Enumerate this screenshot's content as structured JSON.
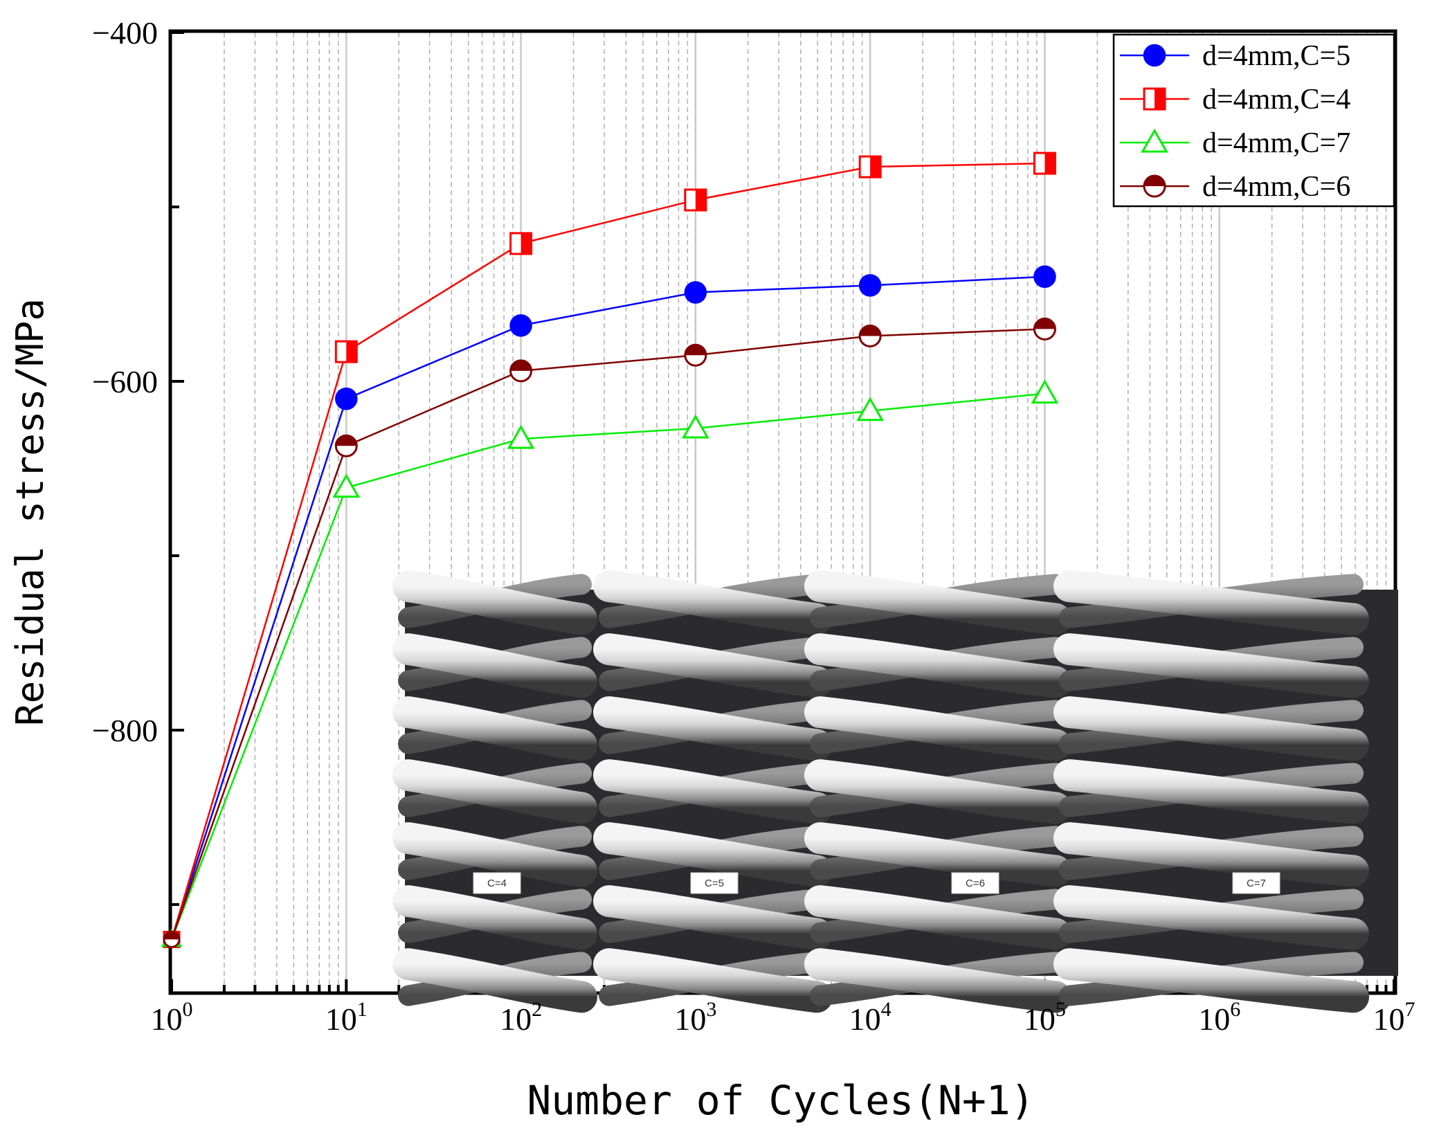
{
  "chart_data": {
    "type": "line",
    "title": "",
    "xlabel": "Number of Cycles(N+1)",
    "ylabel": "Residual stress/MPa",
    "xscale": "log",
    "xlim": [
      1,
      10000000
    ],
    "ylim": [
      -950,
      -400
    ],
    "x_tick_bases": [
      "10",
      "10",
      "10",
      "10",
      "10",
      "10",
      "10",
      "10"
    ],
    "x_tick_exponents": [
      "0",
      "1",
      "2",
      "3",
      "4",
      "5",
      "6",
      "7"
    ],
    "y_ticks": [
      -400,
      -600,
      -800
    ],
    "y_tick_labels": [
      "−400",
      "−600",
      "−800"
    ],
    "legend_position": "top-right",
    "x": [
      1,
      10,
      100,
      1000,
      10000,
      100000
    ],
    "series": [
      {
        "name": "d=4mm,C=5",
        "color": "#0000ff",
        "marker": "circle-filled",
        "values": [
          -920,
          -610,
          -568,
          -549,
          -545,
          -540
        ]
      },
      {
        "name": "d=4mm,C=4",
        "color": "#ff0000",
        "marker": "square-half",
        "values": [
          -920,
          -583,
          -521,
          -496,
          -477,
          -475
        ]
      },
      {
        "name": "d=4mm,C=7",
        "color": "#00ee00",
        "marker": "triangle-open",
        "values": [
          -920,
          -661,
          -633,
          -627,
          -617,
          -607
        ]
      },
      {
        "name": "d=4mm,C=6",
        "color": "#800000",
        "marker": "circle-half",
        "values": [
          -920,
          -637,
          -594,
          -585,
          -574,
          -570
        ]
      }
    ],
    "inset": {
      "description": "Rendered helical spring images",
      "labels": [
        "C=4",
        "C=5",
        "C=6",
        "C=7"
      ]
    }
  }
}
